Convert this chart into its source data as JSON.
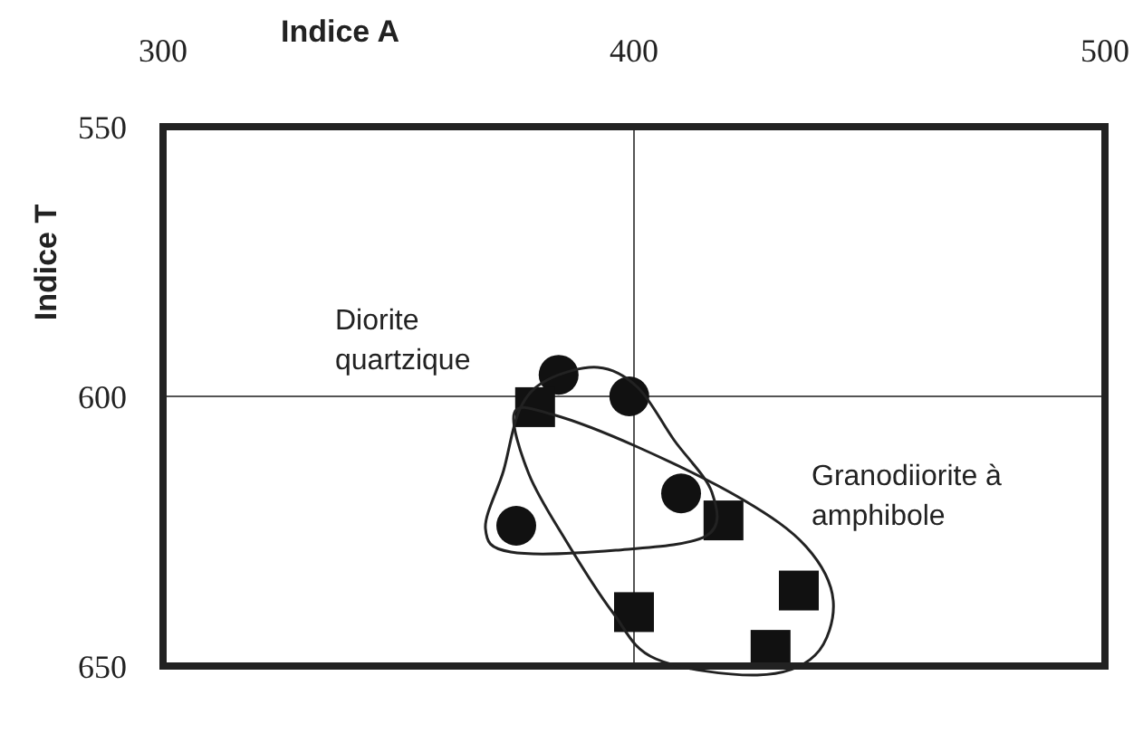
{
  "chart_data": {
    "type": "scatter",
    "xlabel": "Indice A",
    "ylabel": "Indice T",
    "xlim": [
      300,
      500
    ],
    "xticks": [
      300,
      400,
      500
    ],
    "ylim": [
      650,
      550
    ],
    "yticks": [
      550,
      600,
      650
    ],
    "grid": true,
    "legend": false,
    "annotations": [
      "Diorite quartzique",
      "Granodiiorite à amphibole"
    ],
    "series": [
      {
        "color": "#111111",
        "marker": "circle",
        "x": [
          384,
          399,
          410,
          375
        ],
        "values": [
          596,
          600,
          618,
          624
        ]
      },
      {
        "color": "#111111",
        "marker": "square",
        "x": [
          379,
          419,
          435,
          400,
          429
        ],
        "values": [
          602,
          623,
          636,
          640,
          647
        ]
      }
    ]
  }
}
